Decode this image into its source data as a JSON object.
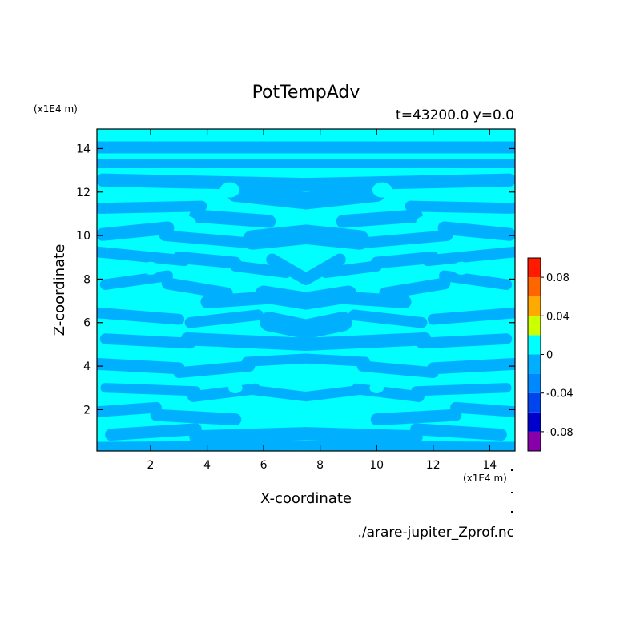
{
  "chart_data": {
    "type": "heatmap",
    "title": "PotTempAdv",
    "subtitle": "t=43200.0  y=0.0",
    "xlabel": "X-coordinate",
    "ylabel": "Z-coordinate",
    "x_unit": "(x1E4 m)",
    "z_unit": "(x1E4 m)",
    "footer": "./arare-jupiter_Zprof.nc",
    "xlim": [
      0.1,
      14.9
    ],
    "ylim": [
      0.1,
      14.9
    ],
    "xticks": [
      2,
      4,
      6,
      8,
      10,
      12,
      14
    ],
    "yticks": [
      2,
      4,
      6,
      8,
      10,
      12,
      14
    ],
    "colorbar": {
      "levels": [
        -0.1,
        -0.08,
        -0.06,
        -0.04,
        -0.02,
        0,
        0.02,
        0.04,
        0.06,
        0.08,
        0.1
      ],
      "colors": [
        "#8800aa",
        "#0000cc",
        "#0044ee",
        "#0088ff",
        "#00b0ff",
        "#00ffff",
        "#ccff00",
        "#ffaa00",
        "#ff6600",
        "#ff1a00",
        "#ffb0b0"
      ],
      "tick_values": [
        -0.08,
        -0.04,
        0,
        0.04,
        0.08
      ],
      "tick_labels": [
        "-0.08",
        "-0.04",
        "0",
        "0.04",
        "0.08"
      ]
    },
    "field_values_shown": [
      -0.01,
      0.01
    ]
  }
}
